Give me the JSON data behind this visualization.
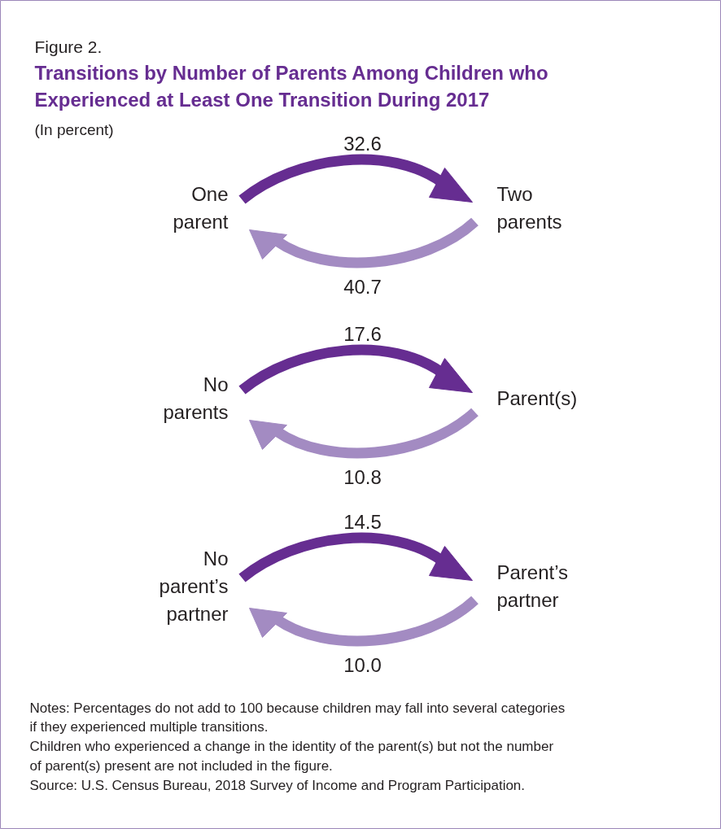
{
  "chart_data": {
    "type": "other",
    "title": "Transitions by Number of Parents Among Children who\nExperienced at Least One Transition During 2017",
    "subtitle": "(In percent)",
    "categories": [
      "One\nparent",
      "No\nparents",
      "No\nparent’s\npartner"
    ],
    "y2_categories": [
      "Two\nparents",
      "Parent(s)",
      "Parent’s\npartner"
    ],
    "series": [
      {
        "color": "#662d91",
        "values": [
          32.6,
          17.6,
          14.5
        ],
        "value_labels": [
          "32.6",
          "17.6",
          "14.5"
        ]
      },
      {
        "color": "#a38bc2",
        "values": [
          40.7,
          10.8,
          10.0
        ],
        "value_labels": [
          "40.7",
          "10.8",
          "10.0"
        ]
      }
    ],
    "annotations": [
      "Figure 2.",
      "Notes: Percentages do not add to 100 because children may fall into several categories\nif they experienced multiple transitions.\nChildren who experienced a change in the identity of the parent(s) but not the number\nof parent(s) present are not included in the figure.\nSource: U.S. Census Bureau, 2018 Survey of Income and Program Participation."
    ]
  }
}
